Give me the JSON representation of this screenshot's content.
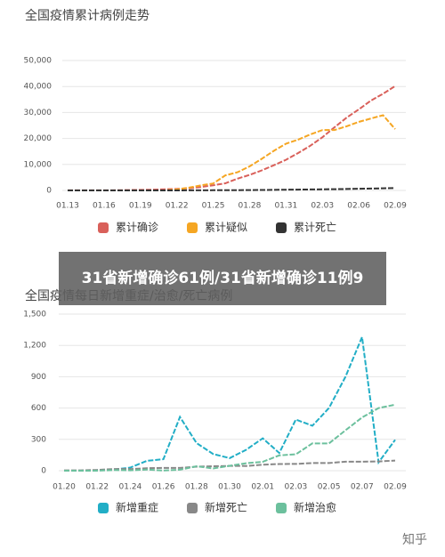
{
  "chart_data": [
    {
      "type": "line",
      "title": "全国疫情累计病例走势",
      "categories": [
        "01.13",
        null,
        null,
        "01.16",
        null,
        null,
        "01.19",
        null,
        null,
        "01.22",
        null,
        null,
        "01.25",
        null,
        null,
        "01.28",
        null,
        null,
        "01.31",
        null,
        null,
        "02.03",
        null,
        null,
        "02.06",
        null,
        null,
        "02.09"
      ],
      "series": [
        {
          "name": "累计确诊",
          "color": "#d9605a",
          "values": [
            41,
            41,
            41,
            45,
            62,
            121,
            198,
            291,
            440,
            571,
            830,
            1287,
            1975,
            2744,
            4515,
            5974,
            7711,
            9692,
            11791,
            14380,
            17205,
            20438,
            24324,
            28018,
            31161,
            34546,
            37198,
            40171
          ]
        },
        {
          "name": "累计疑似",
          "color": "#f5a623",
          "values": [
            0,
            0,
            0,
            0,
            0,
            0,
            0,
            0,
            0,
            393,
            1072,
            1965,
            2684,
            5794,
            6973,
            9239,
            12167,
            15238,
            17988,
            19544,
            21558,
            23214,
            23260,
            24702,
            26359,
            27657,
            28942,
            23589
          ]
        },
        {
          "name": "累计死亡",
          "color": "#333333",
          "values": [
            1,
            1,
            2,
            2,
            2,
            2,
            3,
            6,
            9,
            17,
            25,
            41,
            56,
            80,
            106,
            132,
            170,
            213,
            259,
            304,
            361,
            425,
            490,
            563,
            636,
            722,
            811,
            908
          ]
        }
      ],
      "ylim": [
        0,
        50000
      ],
      "yticks": [
        0,
        {
          "value": 10000,
          "label": "10,000"
        },
        {
          "value": 20000,
          "label": "20,000"
        },
        {
          "value": 30000,
          "label": "30,000"
        },
        {
          "value": 40000,
          "label": "40,000"
        },
        {
          "value": 50000,
          "label": "50,000"
        }
      ],
      "grid": true
    },
    {
      "type": "line",
      "title": "全国疫情每日新增重症/治愈/死亡病例",
      "categories": [
        "01.20",
        null,
        "01.22",
        null,
        "01.24",
        null,
        "01.26",
        null,
        "01.28",
        null,
        "01.30",
        null,
        "02.01",
        null,
        "02.03",
        null,
        "02.05",
        null,
        "02.07",
        null,
        "02.09"
      ],
      "series": [
        {
          "name": "新增重症",
          "color": "#22aec6",
          "values": [
            0,
            0,
            5,
            10,
            30,
            95,
            110,
            515,
            265,
            160,
            120,
            200,
            310,
            170,
            490,
            430,
            600,
            900,
            1280,
            80,
            296
          ]
        },
        {
          "name": "新增死亡",
          "color": "#888888",
          "values": [
            3,
            3,
            8,
            16,
            15,
            24,
            26,
            26,
            38,
            43,
            46,
            45,
            57,
            64,
            65,
            73,
            73,
            86,
            86,
            89,
            97
          ]
        },
        {
          "name": "新增治愈",
          "color": "#6cc09d",
          "values": [
            0,
            0,
            0,
            6,
            3,
            11,
            2,
            9,
            43,
            21,
            47,
            72,
            85,
            147,
            157,
            262,
            261,
            387,
            510,
            600,
            632
          ]
        }
      ],
      "ylim": [
        0,
        1500
      ],
      "yticks": [
        0,
        300,
        600,
        900,
        {
          "value": 1200,
          "label": "1,200"
        },
        {
          "value": 1500,
          "label": "1,500"
        }
      ],
      "grid": true
    }
  ],
  "banner": "31省新增确诊61例/31省新增确诊11例9",
  "watermark": "知乎"
}
